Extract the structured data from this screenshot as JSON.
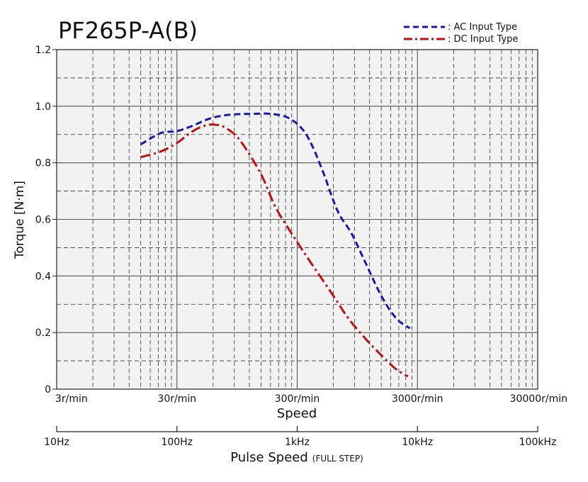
{
  "chart_data": {
    "type": "line",
    "title": "PF265P-A(B)",
    "xlabel": "Speed",
    "ylabel": "Torque [N·m]",
    "x_scale": "log",
    "xlim_rpm": [
      3,
      30000
    ],
    "ylim": [
      0,
      1.2
    ],
    "grid": true,
    "legend_position": "top-right",
    "y_ticks": [
      {
        "value": 0,
        "label": "0"
      },
      {
        "value": 0.2,
        "label": "0.2"
      },
      {
        "value": 0.4,
        "label": "0.4"
      },
      {
        "value": 0.6,
        "label": "0.6"
      },
      {
        "value": 0.8,
        "label": "0.8"
      },
      {
        "value": 1.0,
        "label": "1.0"
      },
      {
        "value": 1.2,
        "label": "1.2"
      }
    ],
    "x_ticks_speed": [
      {
        "value": 3,
        "label": "3r/min"
      },
      {
        "value": 30,
        "label": "30r/min"
      },
      {
        "value": 300,
        "label": "300r/min"
      },
      {
        "value": 3000,
        "label": "3000r/min"
      },
      {
        "value": 30000,
        "label": "30000r/min"
      }
    ],
    "secondary_axis": {
      "label": "Pulse Speed",
      "note": "(FULL STEP)",
      "ticks": [
        {
          "value": 10,
          "label": "10Hz"
        },
        {
          "value": 100,
          "label": "100Hz"
        },
        {
          "value": 1000,
          "label": "1kHz"
        },
        {
          "value": 10000,
          "label": "10kHz"
        },
        {
          "value": 100000,
          "label": "100kHz"
        }
      ],
      "range": [
        10,
        100000
      ]
    },
    "series": [
      {
        "name": ": AC Input Type",
        "color": "#1a1aa8",
        "style": "dashed",
        "x": [
          15,
          22,
          30,
          40,
          55,
          75,
          100,
          130,
          180,
          250,
          330,
          400,
          500,
          650,
          850,
          1100,
          1500,
          2000,
          2600
        ],
        "y": [
          0.865,
          0.905,
          0.912,
          0.93,
          0.955,
          0.968,
          0.972,
          0.973,
          0.973,
          0.96,
          0.92,
          0.86,
          0.76,
          0.63,
          0.55,
          0.45,
          0.33,
          0.25,
          0.215
        ]
      },
      {
        "name": ": DC Input Type",
        "color": "#bb1111",
        "style": "dashdot",
        "x": [
          15,
          22,
          30,
          40,
          50,
          60,
          75,
          100,
          150,
          200,
          300,
          400,
          600,
          800,
          1100,
          1500,
          2000,
          2500
        ],
        "y": [
          0.82,
          0.84,
          0.87,
          0.91,
          0.93,
          0.935,
          0.925,
          0.88,
          0.76,
          0.64,
          0.52,
          0.44,
          0.33,
          0.25,
          0.18,
          0.12,
          0.07,
          0.045
        ]
      }
    ]
  }
}
